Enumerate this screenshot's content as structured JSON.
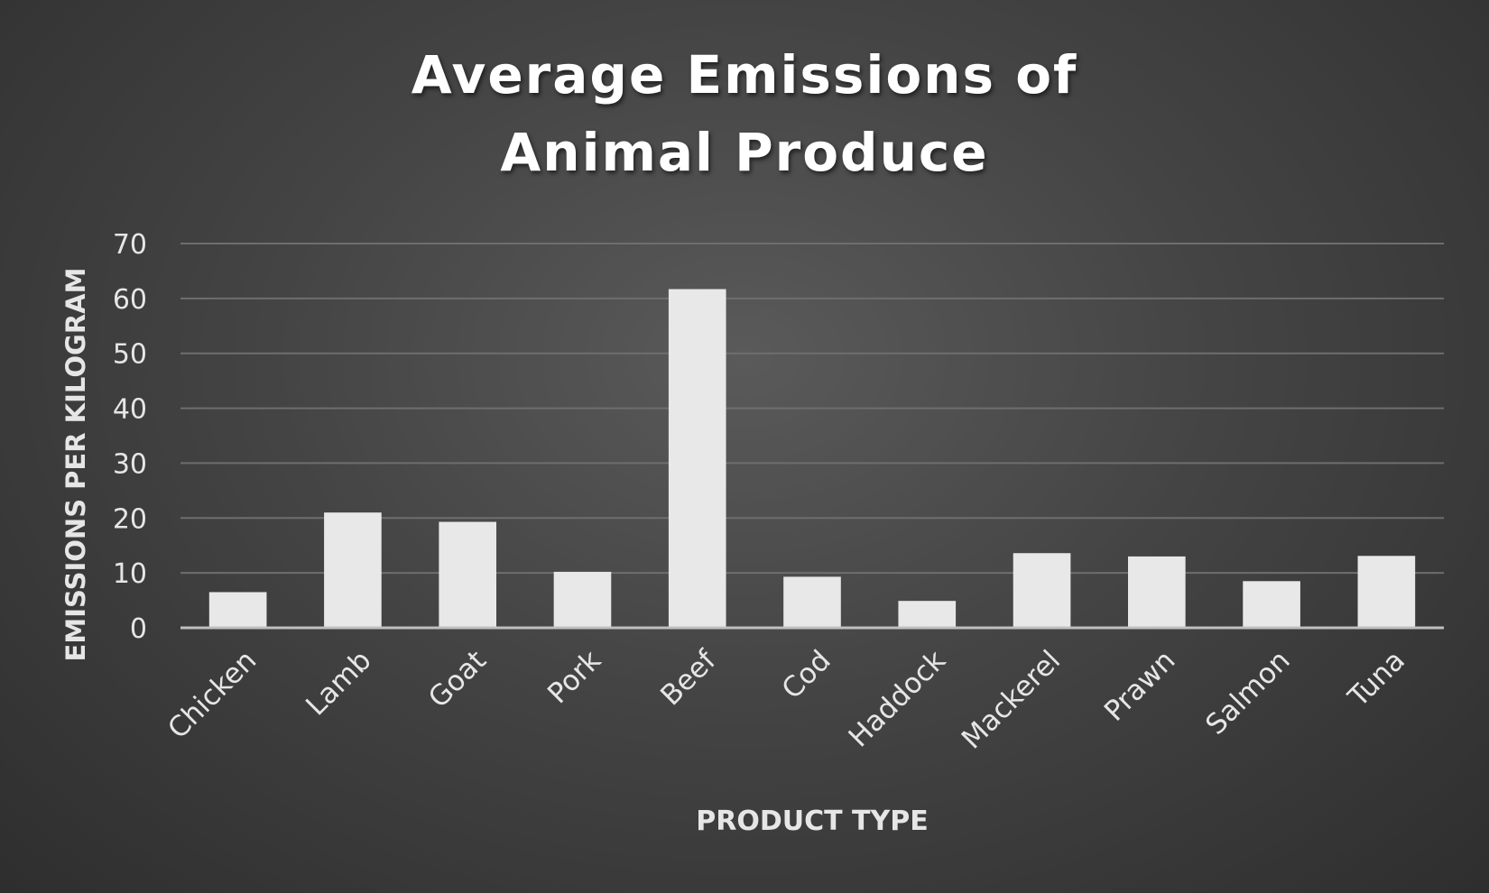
{
  "chart_data": {
    "type": "bar",
    "title_lines": [
      "Average Emissions of",
      "Animal Produce"
    ],
    "xlabel": "PRODUCT TYPE",
    "ylabel": "EMISSIONS PER KILOGRAM",
    "categories": [
      "Chicken",
      "Lamb",
      "Goat",
      "Pork",
      "Beef",
      "Cod",
      "Haddock",
      "Mackerel",
      "Prawn",
      "Salmon",
      "Tuna"
    ],
    "values": [
      6.5,
      21,
      19.3,
      10.2,
      61.7,
      9.3,
      4.9,
      13.6,
      13.0,
      8.5,
      13.1
    ],
    "ylim": [
      0,
      70
    ],
    "yticks": [
      0,
      10,
      20,
      30,
      40,
      50,
      60,
      70
    ],
    "grid": true,
    "legend": "none",
    "colors": {
      "bar": "#e8e8e8",
      "gridline": "#6e6e6e",
      "axis": "#bfbfbf",
      "text": "#e6e6e6"
    }
  }
}
